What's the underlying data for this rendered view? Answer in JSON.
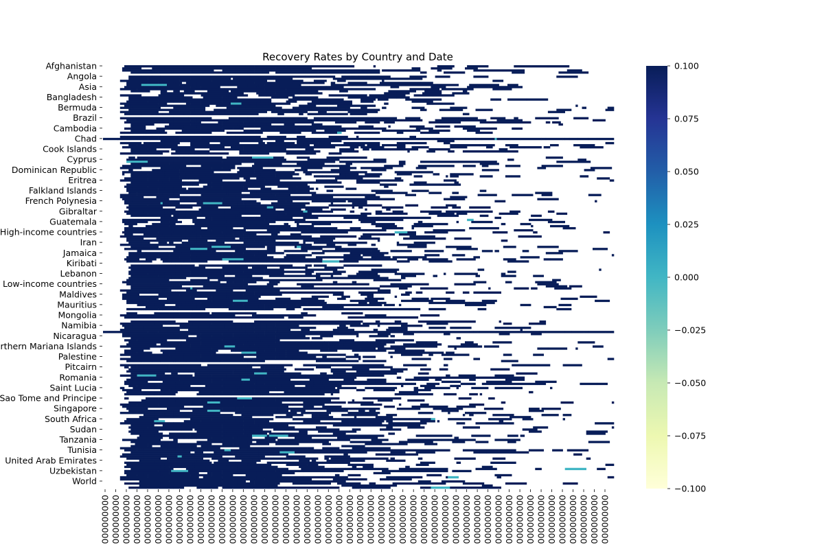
{
  "chart_data": {
    "type": "heatmap",
    "title": "Recovery Rates by Country and Date",
    "xlabel": "",
    "ylabel": "",
    "row_labels": [
      "Afghanistan",
      "Angola",
      "Asia",
      "Bangladesh",
      "Bermuda",
      "Brazil",
      "Cambodia",
      "Chad",
      "Cook Islands",
      "Cyprus",
      "Dominican Republic",
      "Eritrea",
      "Falkland Islands",
      "French Polynesia",
      "Gibraltar",
      "Guatemala",
      "High-income countries",
      "Iran",
      "Jamaica",
      "Kiribati",
      "Lebanon",
      "Low-income countries",
      "Maldives",
      "Mauritius",
      "Mongolia",
      "Namibia",
      "Nicaragua",
      "Northern Mariana Islands",
      "Palestine",
      "Pitcairn",
      "Romania",
      "Saint Lucia",
      "Sao Tome and Principe",
      "Singapore",
      "South Africa",
      "Sudan",
      "Tanzania",
      "Tunisia",
      "United Arab Emirates",
      "Uzbekistan",
      "World"
    ],
    "x_tick_label": "000000000",
    "x_tick_count": 48,
    "colorbar": {
      "colormap": "YlGnBu",
      "vmin": -0.1,
      "vmax": 0.1,
      "ticks": [
        "0.100",
        "0.075",
        "0.050",
        "0.025",
        "0.000",
        "−0.025",
        "−0.050",
        "−0.075",
        "−0.100"
      ]
    },
    "values_summary": "Nearly all reported cells are 0.1 (dark navy); sparse cells near 0.0 (light teal); many missing cells (white), increasing toward later dates."
  },
  "colors": {
    "high": "#081d58",
    "mid": "#41b6c4",
    "low": "#ffffd9",
    "missing": "#ffffff"
  }
}
